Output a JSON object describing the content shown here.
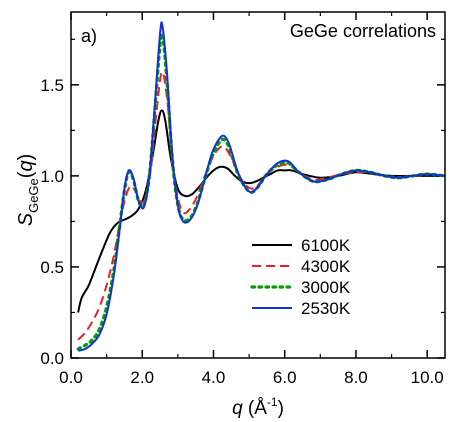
{
  "chart_data": {
    "type": "line",
    "panel_label": "a)",
    "annotation": "GeGe correlations",
    "xlabel": {
      "main": "q",
      "unit_open": " (Å",
      "unit_exp": "-1",
      "unit_close": ")"
    },
    "ylabel": {
      "main": "S",
      "sub": "GeGe",
      "paren_open": "(",
      "var": "q",
      "paren_close": ")"
    },
    "xlim": [
      0,
      10.5
    ],
    "ylim": [
      0,
      1.9
    ],
    "x_ticks": [
      0,
      2,
      4,
      6,
      8,
      10
    ],
    "x_tick_labels": [
      "0.0",
      "2.0",
      "4.0",
      "6.0",
      "8.0",
      "10.0"
    ],
    "y_ticks": [
      0,
      0.5,
      1.0,
      1.5
    ],
    "y_tick_labels": [
      "0.0",
      "0.5",
      "1.0",
      "1.5"
    ],
    "legend_position": "center-right",
    "series": [
      {
        "name": "6100K",
        "color": "#000000",
        "dash": "solid",
        "points": [
          [
            0.2,
            0.25
          ],
          [
            0.3,
            0.33
          ],
          [
            0.5,
            0.4
          ],
          [
            0.7,
            0.5
          ],
          [
            0.9,
            0.6
          ],
          [
            1.1,
            0.69
          ],
          [
            1.3,
            0.74
          ],
          [
            1.5,
            0.76
          ],
          [
            1.7,
            0.78
          ],
          [
            1.9,
            0.82
          ],
          [
            2.1,
            0.92
          ],
          [
            2.3,
            1.12
          ],
          [
            2.45,
            1.3
          ],
          [
            2.55,
            1.36
          ],
          [
            2.65,
            1.3
          ],
          [
            2.8,
            1.1
          ],
          [
            3.0,
            0.93
          ],
          [
            3.2,
            0.89
          ],
          [
            3.4,
            0.9
          ],
          [
            3.6,
            0.94
          ],
          [
            3.8,
            0.99
          ],
          [
            4.0,
            1.03
          ],
          [
            4.2,
            1.05
          ],
          [
            4.4,
            1.04
          ],
          [
            4.6,
            1.0
          ],
          [
            4.8,
            0.97
          ],
          [
            5.0,
            0.96
          ],
          [
            5.2,
            0.97
          ],
          [
            5.4,
            0.99
          ],
          [
            5.6,
            1.01
          ],
          [
            5.8,
            1.03
          ],
          [
            6.0,
            1.03
          ],
          [
            6.2,
            1.03
          ],
          [
            6.5,
            1.01
          ],
          [
            7.0,
            0.99
          ],
          [
            7.5,
            1.0
          ],
          [
            8.0,
            1.02
          ],
          [
            8.5,
            1.01
          ],
          [
            9.0,
            1.0
          ],
          [
            9.5,
            1.0
          ],
          [
            10.0,
            1.0
          ],
          [
            10.5,
            1.0
          ]
        ]
      },
      {
        "name": "4300K",
        "color": "#e8202a",
        "dash": "dashed",
        "points": [
          [
            0.2,
            0.1
          ],
          [
            0.4,
            0.14
          ],
          [
            0.6,
            0.2
          ],
          [
            0.8,
            0.28
          ],
          [
            1.0,
            0.4
          ],
          [
            1.2,
            0.56
          ],
          [
            1.35,
            0.72
          ],
          [
            1.5,
            0.86
          ],
          [
            1.65,
            0.94
          ],
          [
            1.8,
            0.92
          ],
          [
            1.95,
            0.86
          ],
          [
            2.1,
            0.88
          ],
          [
            2.25,
            1.05
          ],
          [
            2.4,
            1.35
          ],
          [
            2.55,
            1.57
          ],
          [
            2.7,
            1.42
          ],
          [
            2.85,
            1.08
          ],
          [
            3.0,
            0.88
          ],
          [
            3.15,
            0.8
          ],
          [
            3.3,
            0.81
          ],
          [
            3.5,
            0.87
          ],
          [
            3.7,
            0.97
          ],
          [
            3.9,
            1.07
          ],
          [
            4.1,
            1.14
          ],
          [
            4.3,
            1.16
          ],
          [
            4.5,
            1.1
          ],
          [
            4.7,
            1.01
          ],
          [
            4.9,
            0.95
          ],
          [
            5.1,
            0.93
          ],
          [
            5.3,
            0.96
          ],
          [
            5.5,
            1.01
          ],
          [
            5.8,
            1.05
          ],
          [
            6.1,
            1.06
          ],
          [
            6.4,
            1.02
          ],
          [
            6.8,
            0.98
          ],
          [
            7.2,
            0.99
          ],
          [
            7.6,
            1.01
          ],
          [
            8.0,
            1.02
          ],
          [
            8.4,
            1.02
          ],
          [
            8.8,
            1.0
          ],
          [
            9.2,
            0.99
          ],
          [
            9.6,
            1.0
          ],
          [
            10.0,
            1.01
          ],
          [
            10.5,
            1.0
          ]
        ]
      },
      {
        "name": "3000K",
        "color": "#00a000",
        "dash": "dotted",
        "points": [
          [
            0.2,
            0.05
          ],
          [
            0.4,
            0.07
          ],
          [
            0.6,
            0.1
          ],
          [
            0.8,
            0.16
          ],
          [
            1.0,
            0.28
          ],
          [
            1.2,
            0.48
          ],
          [
            1.35,
            0.7
          ],
          [
            1.5,
            0.92
          ],
          [
            1.62,
            1.02
          ],
          [
            1.75,
            0.98
          ],
          [
            1.9,
            0.86
          ],
          [
            2.05,
            0.84
          ],
          [
            2.2,
            1.0
          ],
          [
            2.35,
            1.35
          ],
          [
            2.5,
            1.72
          ],
          [
            2.58,
            1.76
          ],
          [
            2.7,
            1.5
          ],
          [
            2.85,
            1.08
          ],
          [
            3.0,
            0.84
          ],
          [
            3.15,
            0.76
          ],
          [
            3.35,
            0.77
          ],
          [
            3.55,
            0.85
          ],
          [
            3.75,
            0.98
          ],
          [
            3.95,
            1.1
          ],
          [
            4.15,
            1.18
          ],
          [
            4.3,
            1.2
          ],
          [
            4.45,
            1.15
          ],
          [
            4.65,
            1.03
          ],
          [
            4.85,
            0.95
          ],
          [
            5.05,
            0.91
          ],
          [
            5.25,
            0.94
          ],
          [
            5.5,
            1.01
          ],
          [
            5.8,
            1.06
          ],
          [
            6.1,
            1.07
          ],
          [
            6.4,
            1.02
          ],
          [
            6.8,
            0.97
          ],
          [
            7.2,
            0.98
          ],
          [
            7.6,
            1.01
          ],
          [
            8.0,
            1.03
          ],
          [
            8.4,
            1.02
          ],
          [
            8.8,
            1.0
          ],
          [
            9.2,
            0.99
          ],
          [
            9.6,
            1.0
          ],
          [
            10.0,
            1.01
          ],
          [
            10.5,
            1.0
          ]
        ]
      },
      {
        "name": "2530K",
        "color": "#1530d8",
        "dash": "solid",
        "points": [
          [
            0.2,
            0.04
          ],
          [
            0.4,
            0.05
          ],
          [
            0.6,
            0.08
          ],
          [
            0.8,
            0.13
          ],
          [
            1.0,
            0.24
          ],
          [
            1.2,
            0.45
          ],
          [
            1.35,
            0.68
          ],
          [
            1.5,
            0.93
          ],
          [
            1.62,
            1.03
          ],
          [
            1.75,
            0.99
          ],
          [
            1.9,
            0.86
          ],
          [
            2.05,
            0.83
          ],
          [
            2.2,
            1.0
          ],
          [
            2.35,
            1.38
          ],
          [
            2.5,
            1.78
          ],
          [
            2.57,
            1.82
          ],
          [
            2.7,
            1.55
          ],
          [
            2.85,
            1.1
          ],
          [
            3.0,
            0.84
          ],
          [
            3.15,
            0.75
          ],
          [
            3.35,
            0.76
          ],
          [
            3.55,
            0.84
          ],
          [
            3.75,
            0.98
          ],
          [
            3.95,
            1.12
          ],
          [
            4.15,
            1.2
          ],
          [
            4.3,
            1.22
          ],
          [
            4.45,
            1.17
          ],
          [
            4.65,
            1.04
          ],
          [
            4.85,
            0.95
          ],
          [
            5.05,
            0.91
          ],
          [
            5.25,
            0.94
          ],
          [
            5.5,
            1.01
          ],
          [
            5.8,
            1.07
          ],
          [
            6.1,
            1.08
          ],
          [
            6.4,
            1.02
          ],
          [
            6.8,
            0.97
          ],
          [
            7.2,
            0.98
          ],
          [
            7.6,
            1.01
          ],
          [
            8.0,
            1.03
          ],
          [
            8.4,
            1.02
          ],
          [
            8.8,
            1.0
          ],
          [
            9.2,
            0.99
          ],
          [
            9.6,
            1.0
          ],
          [
            10.0,
            1.01
          ],
          [
            10.5,
            1.0
          ]
        ]
      }
    ]
  }
}
